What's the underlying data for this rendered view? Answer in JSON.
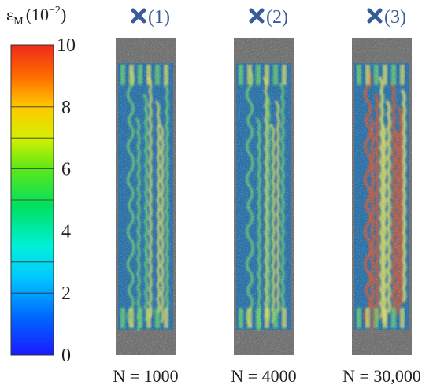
{
  "colorbar": {
    "symbol": "ε",
    "subscript": "M",
    "unit_base": "(10",
    "unit_exp": "−2",
    "unit_close": ")",
    "ticks": [
      "10",
      "8",
      "6",
      "4",
      "2",
      "0"
    ],
    "range": [
      0,
      10
    ]
  },
  "markers": [
    "(1)",
    "(2)",
    "(3)"
  ],
  "marker_color": "#3a5b9a",
  "marker_icon": "x-cross-icon",
  "captions": [
    "N = 1000",
    "N = 4000",
    "N = 30,000"
  ],
  "colors": {
    "specimen_background": "#2a6fa5",
    "grip_gray": "#6f6f6f",
    "band_green": "#6fd06a",
    "band_yellow": "#d8d860",
    "band_red": "#c85a38"
  }
}
